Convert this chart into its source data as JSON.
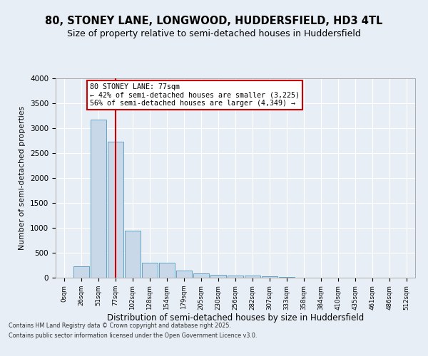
{
  "title": "80, STONEY LANE, LONGWOOD, HUDDERSFIELD, HD3 4TL",
  "subtitle": "Size of property relative to semi-detached houses in Huddersfield",
  "xlabel": "Distribution of semi-detached houses by size in Huddersfield",
  "ylabel": "Number of semi-detached properties",
  "categories": [
    "0sqm",
    "26sqm",
    "51sqm",
    "77sqm",
    "102sqm",
    "128sqm",
    "154sqm",
    "179sqm",
    "205sqm",
    "230sqm",
    "256sqm",
    "282sqm",
    "307sqm",
    "333sqm",
    "358sqm",
    "384sqm",
    "410sqm",
    "435sqm",
    "461sqm",
    "486sqm",
    "512sqm"
  ],
  "values": [
    0,
    230,
    3175,
    2725,
    950,
    300,
    295,
    150,
    90,
    60,
    45,
    38,
    30,
    10,
    5,
    3,
    2,
    1,
    1,
    0,
    0
  ],
  "bar_color": "#c8d8e8",
  "bar_edge_color": "#5599bb",
  "red_line_index": 3,
  "red_line_label": "80 STONEY LANE: 77sqm",
  "annotation_smaller": "← 42% of semi-detached houses are smaller (3,225)",
  "annotation_larger": "56% of semi-detached houses are larger (4,349) →",
  "annotation_box_color": "#ffffff",
  "annotation_box_edge": "#cc0000",
  "ylim": [
    0,
    4000
  ],
  "yticks": [
    0,
    500,
    1000,
    1500,
    2000,
    2500,
    3000,
    3500,
    4000
  ],
  "background_color": "#e8eef5",
  "plot_background": "#e8eef5",
  "grid_color": "#ffffff",
  "title_fontsize": 10.5,
  "subtitle_fontsize": 9,
  "footer_line1": "Contains HM Land Registry data © Crown copyright and database right 2025.",
  "footer_line2": "Contains public sector information licensed under the Open Government Licence v3.0."
}
